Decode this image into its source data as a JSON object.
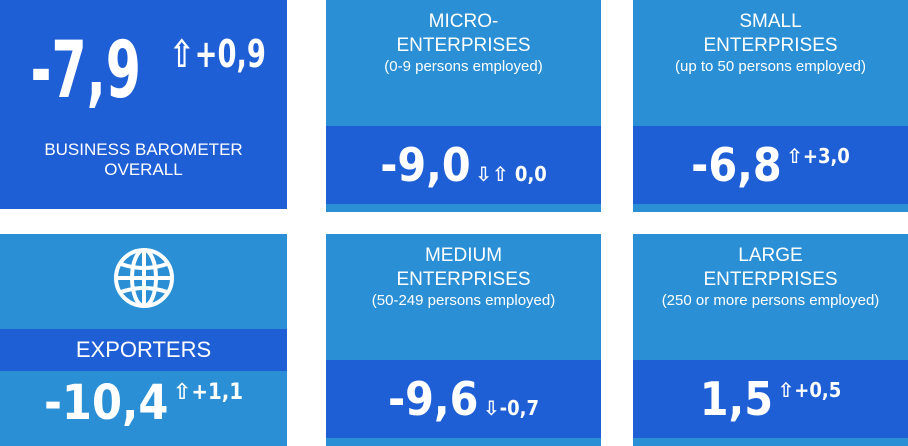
{
  "colors": {
    "light_blue": "#2a8fd4",
    "dark_blue": "#1f5fd6",
    "text": "#ffffff"
  },
  "overall": {
    "value": "-7,9",
    "arrow": "⇧",
    "change": "+0,9",
    "label_line1": "BUSINESS BAROMETER",
    "label_line2": "OVERALL"
  },
  "exporters": {
    "icon": "globe-icon",
    "label": "EXPORTERS",
    "value": "-10,4",
    "arrow": "⇧",
    "change": "+1,1"
  },
  "micro": {
    "title_line1": "MICRO-",
    "title_line2": "ENTERPRISES",
    "subtitle": "(0-9 persons employed)",
    "value": "-9,0",
    "arrow": "⇩⇧",
    "change": "0,0"
  },
  "small": {
    "title_line1": "SMALL",
    "title_line2": "ENTERPRISES",
    "subtitle": "(up to 50 persons employed)",
    "value": "-6,8",
    "arrow": "⇧",
    "change": "+3,0"
  },
  "medium": {
    "title_line1": "MEDIUM",
    "title_line2": "ENTERPRISES",
    "subtitle": "(50-249 persons employed)",
    "value": "-9,6",
    "arrow": "⇩",
    "change": "-0,7"
  },
  "large": {
    "title_line1": "LARGE",
    "title_line2": "ENTERPRISES",
    "subtitle": "(250 or more persons employed)",
    "value": "1,5",
    "arrow": "⇧",
    "change": "+0,5"
  }
}
